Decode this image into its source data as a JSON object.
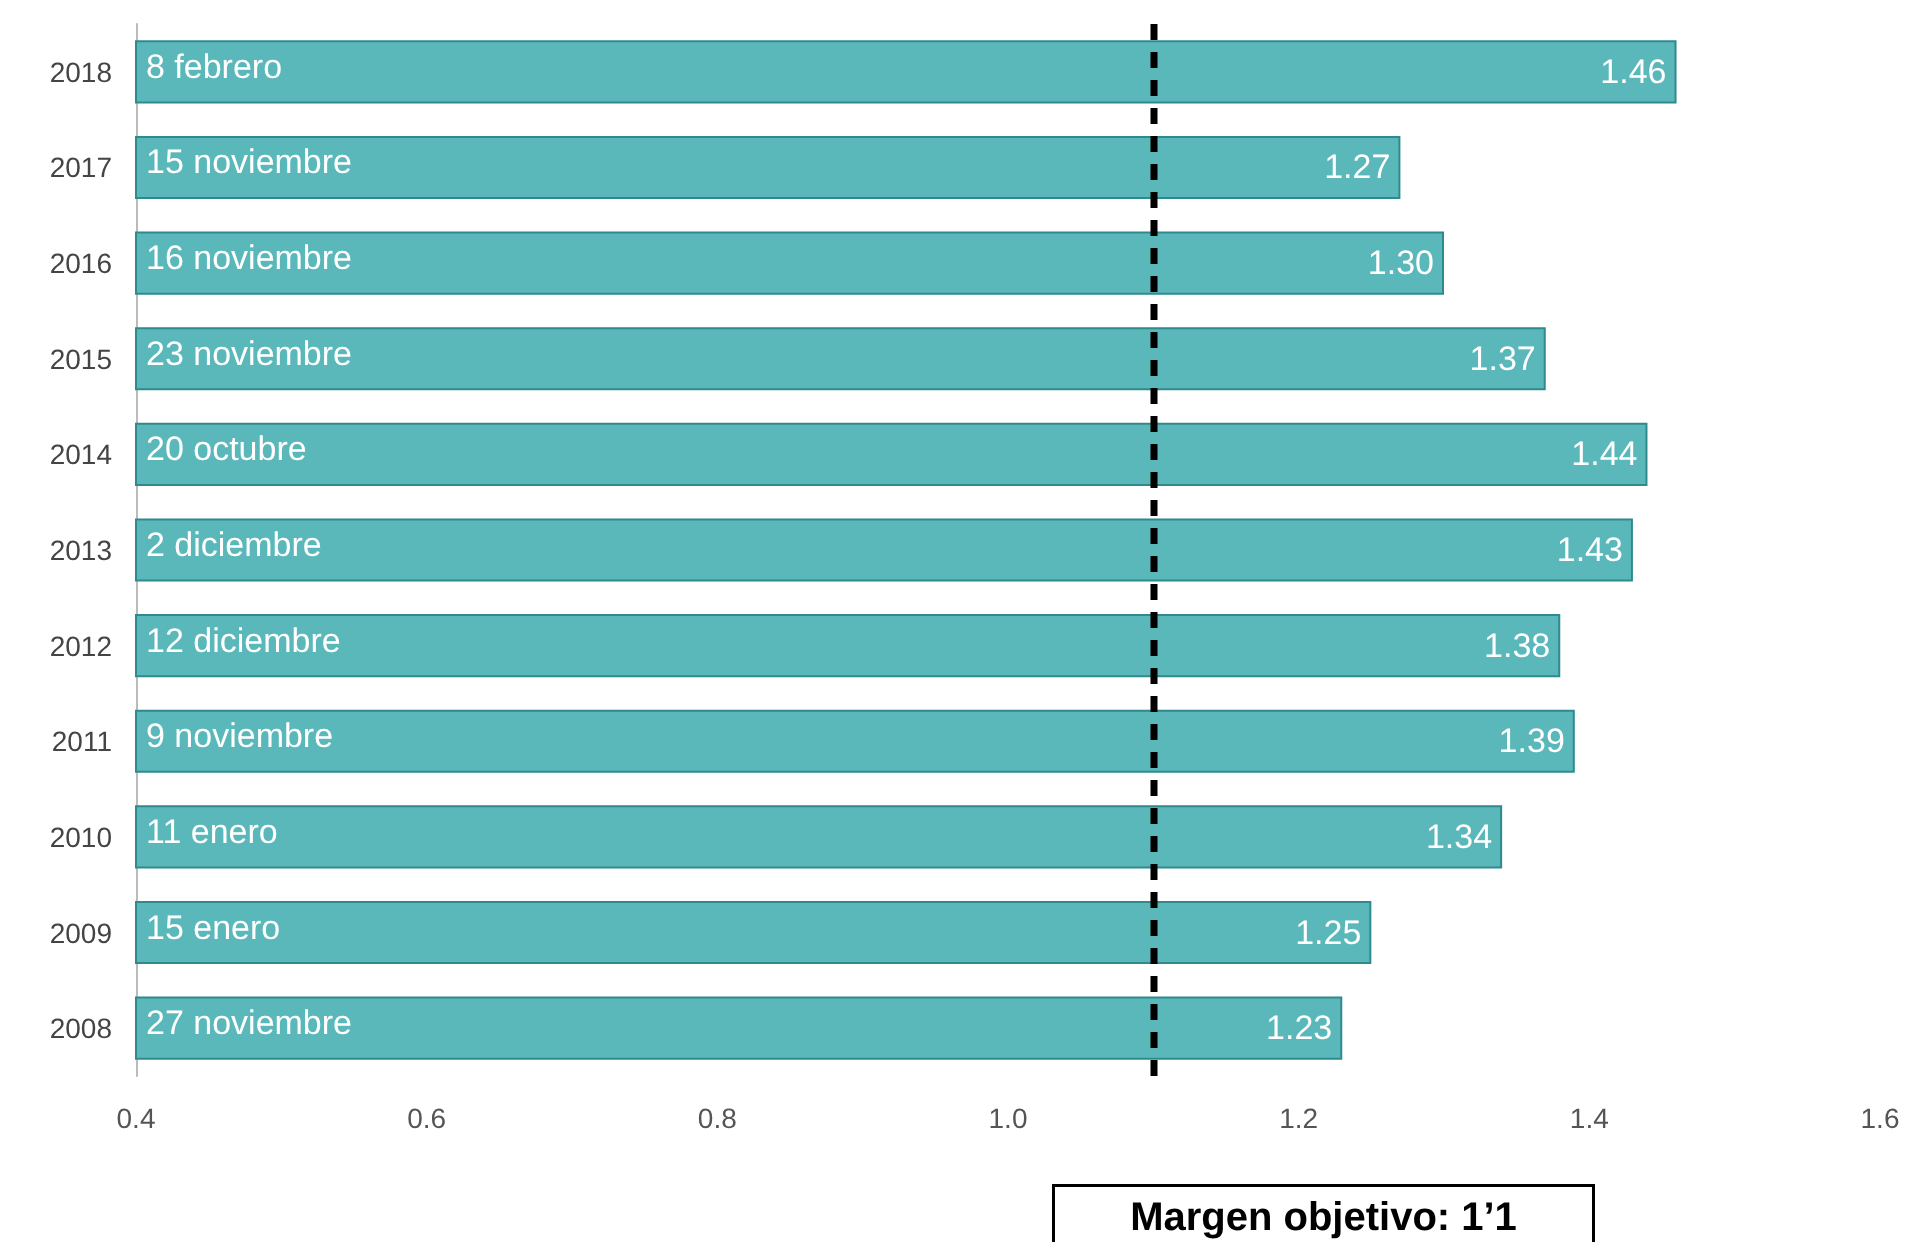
{
  "chart_data": {
    "type": "bar",
    "orientation": "horizontal",
    "categories": [
      "2018",
      "2017",
      "2016",
      "2015",
      "2014",
      "2013",
      "2012",
      "2011",
      "2010",
      "2009",
      "2008"
    ],
    "values": [
      1.46,
      1.27,
      1.3,
      1.37,
      1.44,
      1.43,
      1.38,
      1.39,
      1.34,
      1.25,
      1.23
    ],
    "value_labels": [
      "1.46",
      "1.27",
      "1.30",
      "1.37",
      "1.44",
      "1.43",
      "1.38",
      "1.39",
      "1.34",
      "1.25",
      "1.23"
    ],
    "color": "#5ab8bb",
    "xlim": [
      0.4,
      1.6
    ],
    "xticks": [
      0.4,
      0.6,
      0.8,
      {
        "value": 1,
        "label": "1.0"
      },
      1.2,
      1.4,
      1.6
    ],
    "grid": false,
    "ref_lines": [
      {
        "axis": "x",
        "value": 1.1,
        "label": "Margen objetivo: 1’1",
        "color": "#000000",
        "line_style": "dashed"
      }
    ],
    "annotations": [
      {
        "text": "8 febrero",
        "y": "2018"
      },
      {
        "text": "15 noviembre",
        "y": "2017"
      },
      {
        "text": "16 noviembre",
        "y": "2016"
      },
      {
        "text": "23 noviembre",
        "y": "2015"
      },
      {
        "text": "20 octubre",
        "y": "2014"
      },
      {
        "text": "2 diciembre",
        "y": "2013"
      },
      {
        "text": "12 diciembre",
        "y": "2012"
      },
      {
        "text": "9 noviembre",
        "y": "2011"
      },
      {
        "text": "11 enero",
        "y": "2010"
      },
      {
        "text": "15 enero",
        "y": "2009"
      },
      {
        "text": "27 noviembre",
        "y": "2008"
      }
    ]
  }
}
